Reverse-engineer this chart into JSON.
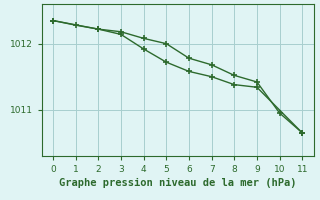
{
  "line1_x": [
    0,
    1,
    2,
    3,
    4,
    5,
    6,
    7,
    8,
    9,
    10,
    11
  ],
  "line1_y": [
    1012.35,
    1012.28,
    1012.22,
    1012.18,
    1012.08,
    1012.0,
    1011.78,
    1011.68,
    1011.52,
    1011.42,
    1010.95,
    1010.65
  ],
  "line2_x": [
    0,
    2,
    3,
    4,
    5,
    6,
    7,
    8,
    9,
    11
  ],
  "line2_y": [
    1012.35,
    1012.22,
    1012.14,
    1011.92,
    1011.72,
    1011.58,
    1011.5,
    1011.38,
    1011.34,
    1010.65
  ],
  "line_color": "#2d6a2d",
  "marker": "+",
  "marker_size": 5,
  "linewidth": 1.0,
  "background_color": "#e0f4f4",
  "grid_color": "#a8cece",
  "xlabel": "Graphe pression niveau de la mer (hPa)",
  "xlabel_color": "#2d6a2d",
  "xlabel_fontsize": 7.5,
  "tick_color": "#2d6a2d",
  "tick_fontsize": 6.5,
  "ylim": [
    1010.3,
    1012.6
  ],
  "xlim": [
    -0.5,
    11.5
  ],
  "yticks": [
    1011,
    1012
  ],
  "xticks": [
    0,
    1,
    2,
    3,
    4,
    5,
    6,
    7,
    8,
    9,
    10,
    11
  ]
}
